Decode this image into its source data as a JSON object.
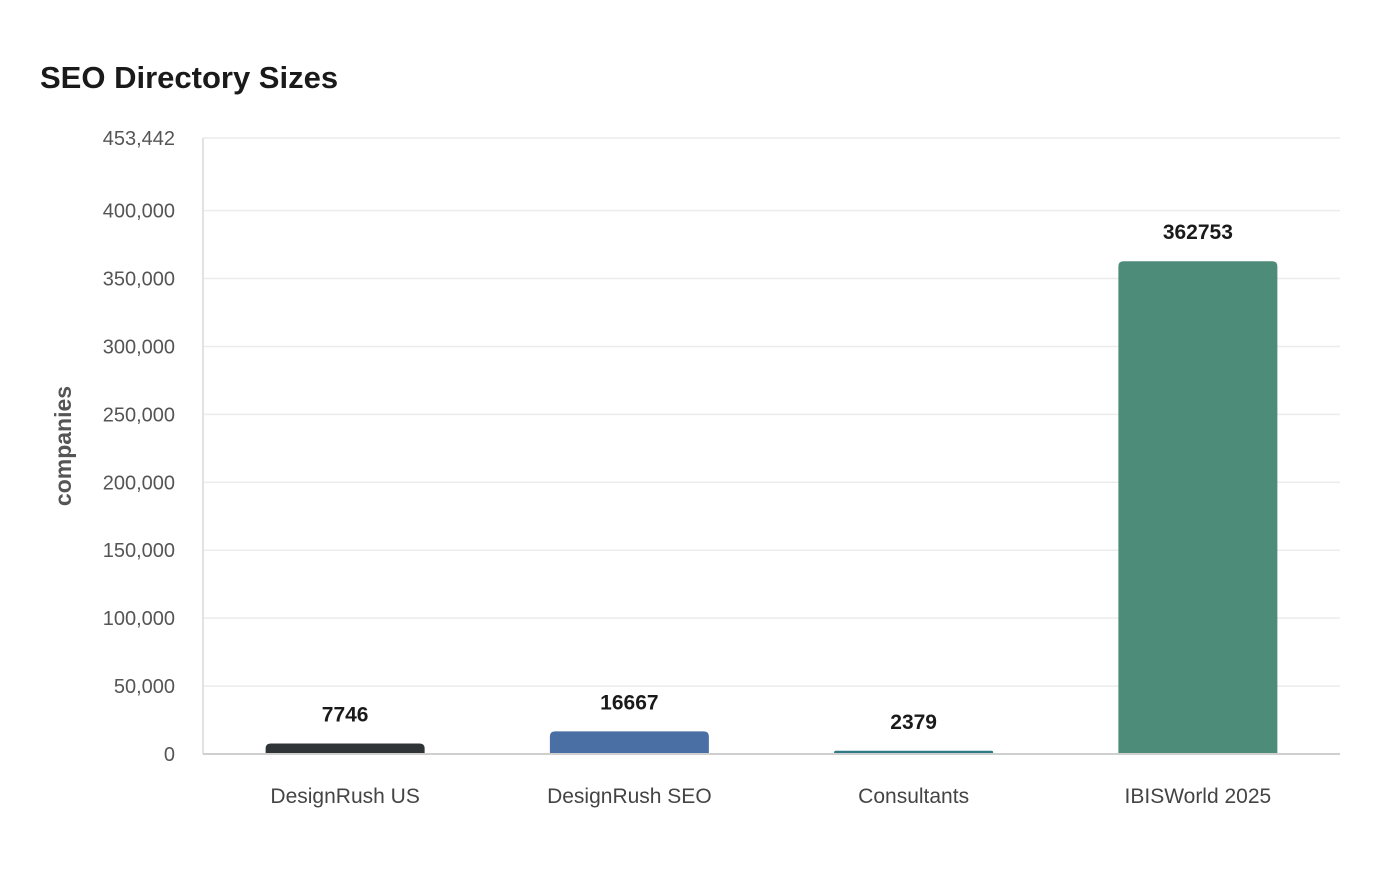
{
  "chart_data": {
    "type": "bar",
    "title": "SEO Directory Sizes",
    "xlabel": "",
    "ylabel": "companies",
    "categories": [
      "DesignRush US",
      "DesignRush SEO",
      "Consultants",
      "IBISWorld 2025"
    ],
    "values": [
      7746,
      16667,
      2379,
      362753
    ],
    "value_labels": [
      "7746",
      "16667",
      "2379",
      "362753"
    ],
    "colors": [
      "#2f3437",
      "#4a6fa5",
      "#2f7a85",
      "#4e8c7a"
    ],
    "ylim": [
      0,
      453442
    ],
    "yticks": [
      0,
      50000,
      100000,
      150000,
      200000,
      250000,
      300000,
      350000,
      400000,
      453442
    ],
    "ytick_labels": [
      "0",
      "50,000",
      "100,000",
      "150,000",
      "200,000",
      "250,000",
      "300,000",
      "350,000",
      "400,000",
      "453,442"
    ],
    "grid": true,
    "legend": "none"
  }
}
